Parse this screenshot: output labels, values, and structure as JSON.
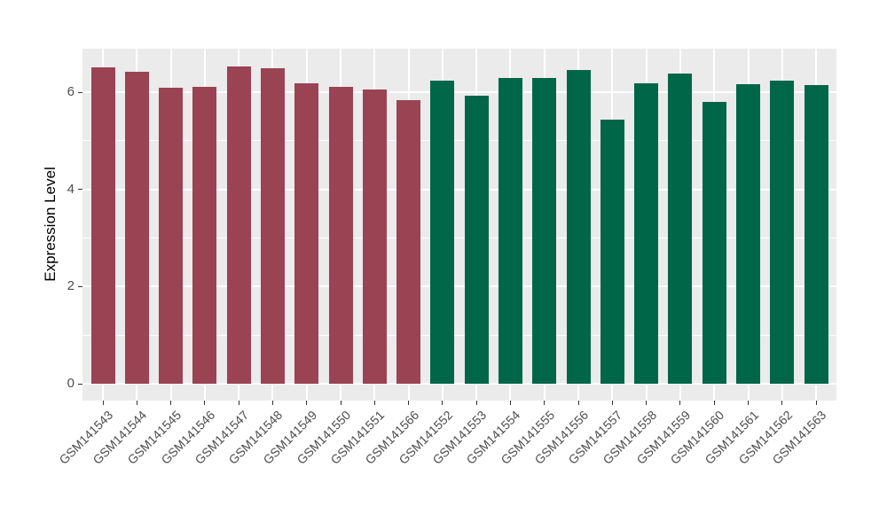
{
  "chart_data": {
    "type": "bar",
    "title": "",
    "xlabel": "",
    "ylabel": "Expression Level",
    "categories": [
      "GSM141543",
      "GSM141544",
      "GSM141545",
      "GSM141546",
      "GSM141547",
      "GSM141548",
      "GSM141549",
      "GSM141550",
      "GSM141551",
      "GSM141566",
      "GSM141552",
      "GSM141553",
      "GSM141554",
      "GSM141555",
      "GSM141556",
      "GSM141557",
      "GSM141558",
      "GSM141559",
      "GSM141560",
      "GSM141561",
      "GSM141562",
      "GSM141563"
    ],
    "values": [
      6.52,
      6.43,
      6.1,
      6.12,
      6.54,
      6.49,
      6.18,
      6.11,
      6.06,
      5.83,
      6.24,
      5.93,
      6.3,
      6.3,
      6.46,
      5.44,
      6.18,
      6.38,
      5.8,
      6.16,
      6.24,
      6.15
    ],
    "bar_groups": [
      "groupA",
      "groupA",
      "groupA",
      "groupA",
      "groupA",
      "groupA",
      "groupA",
      "groupA",
      "groupA",
      "groupA",
      "groupB",
      "groupB",
      "groupB",
      "groupB",
      "groupB",
      "groupB",
      "groupB",
      "groupB",
      "groupB",
      "groupB",
      "groupB",
      "groupB"
    ],
    "group_colors": {
      "groupA": "#9A4352",
      "groupB": "#006648"
    },
    "yticks": [
      0,
      2,
      4,
      6
    ],
    "minor_yticks": [
      1,
      3,
      5
    ],
    "ylim": [
      0,
      6.85
    ],
    "legend": "none",
    "grid": "on",
    "panel_background": "#EBEBEB",
    "gridline_color": "#FFFFFF",
    "tick_color": "#333333",
    "tick_label_color": "#4D4D4D",
    "axis_title_color": "#000000",
    "bar_width_fraction": 0.7
  }
}
